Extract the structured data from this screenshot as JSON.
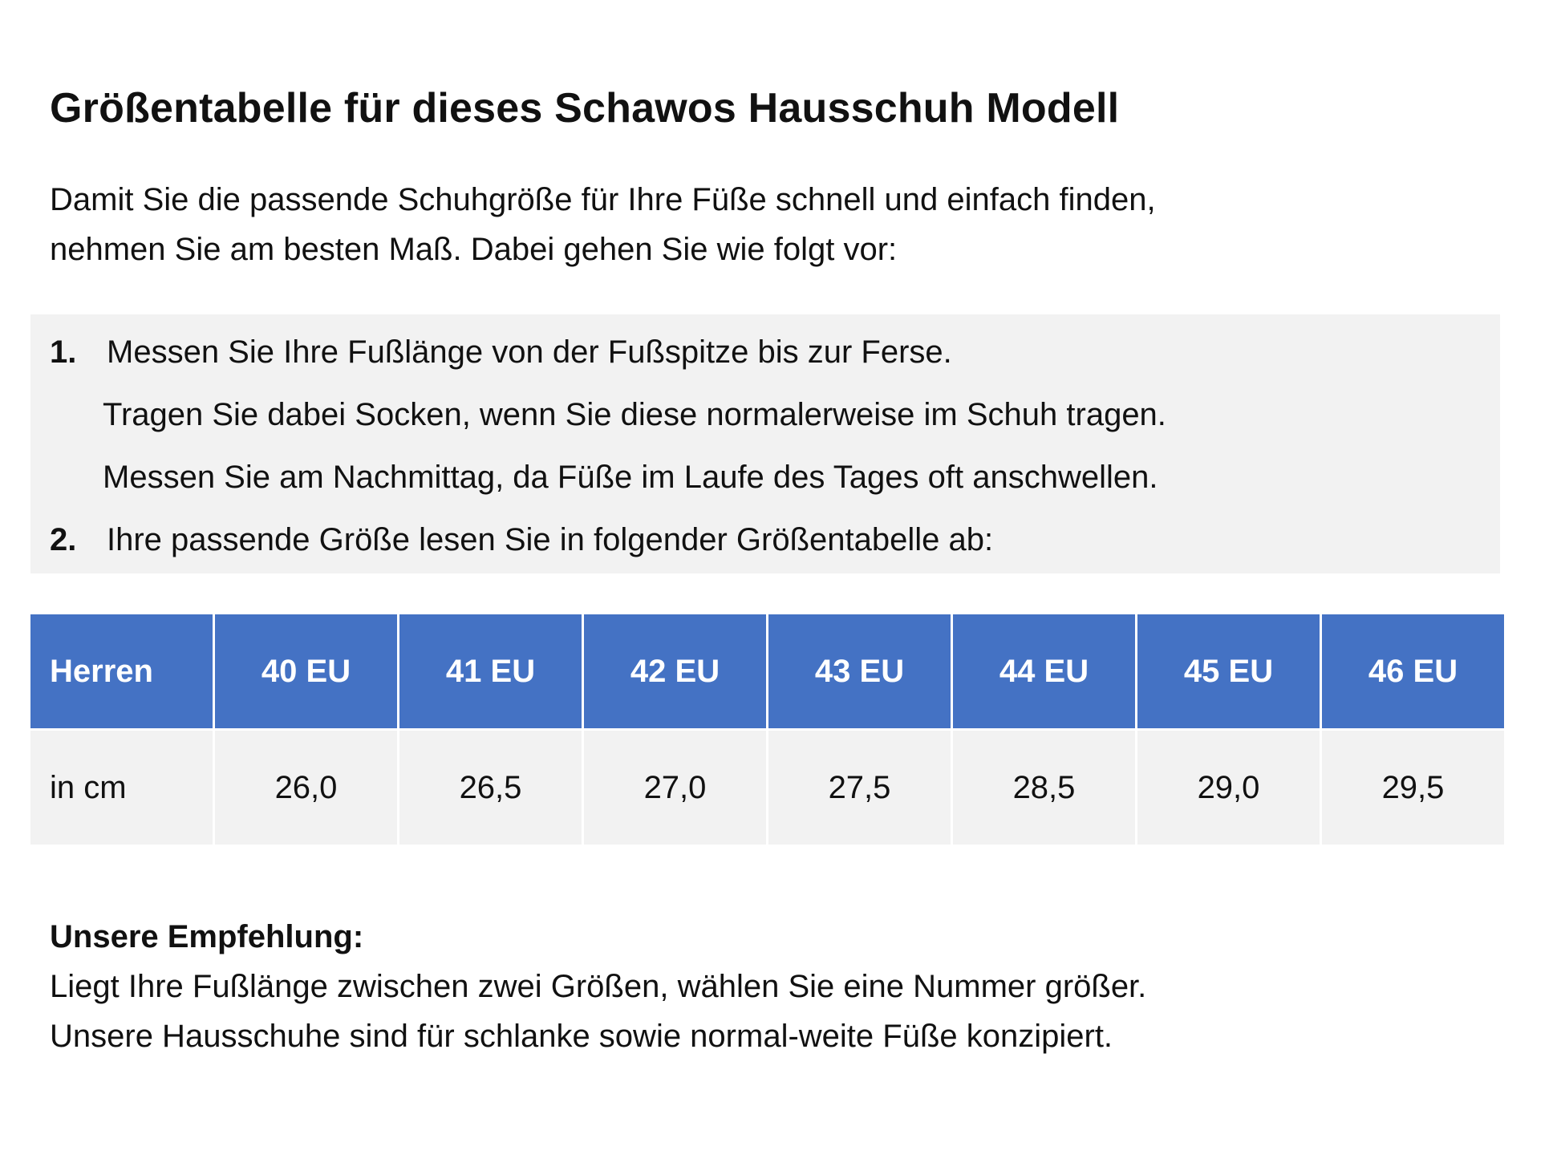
{
  "title": "Größentabelle für dieses Schawos Hausschuh Modell",
  "intro": {
    "line1": "Damit Sie die passende Schuhgröße für Ihre Füße schnell und einfach finden,",
    "line2": "nehmen Sie am besten Maß. Dabei gehen Sie wie folgt vor:"
  },
  "steps": {
    "step1": {
      "number": "1.",
      "text": "Messen Sie Ihre Fußlänge von der Fußspitze bis zur Ferse.",
      "sub1": "Tragen Sie dabei Socken, wenn Sie diese normalerweise im Schuh tragen.",
      "sub2": "Messen Sie am Nachmittag, da Füße im Laufe des Tages oft anschwellen."
    },
    "step2": {
      "number": "2.",
      "text": "Ihre passende Größe lesen Sie in folgender Größentabelle ab:"
    }
  },
  "table": {
    "header": [
      "Herren",
      "40 EU",
      "41 EU",
      "42 EU",
      "43 EU",
      "44 EU",
      "45 EU",
      "46 EU"
    ],
    "row": [
      "in cm",
      "26,0",
      "26,5",
      "27,0",
      "27,5",
      "28,5",
      "29,0",
      "29,5"
    ]
  },
  "recommendation": {
    "heading": "Unsere Empfehlung:",
    "line1": "Liegt Ihre Fußlänge zwischen zwei Größen, wählen Sie eine Nummer größer.",
    "line2": "Unsere Hausschuhe sind für schlanke sowie normal-weite Füße konzipiert."
  },
  "colors": {
    "header_bg": "#4472c4",
    "panel_bg": "#f2f2f2"
  }
}
